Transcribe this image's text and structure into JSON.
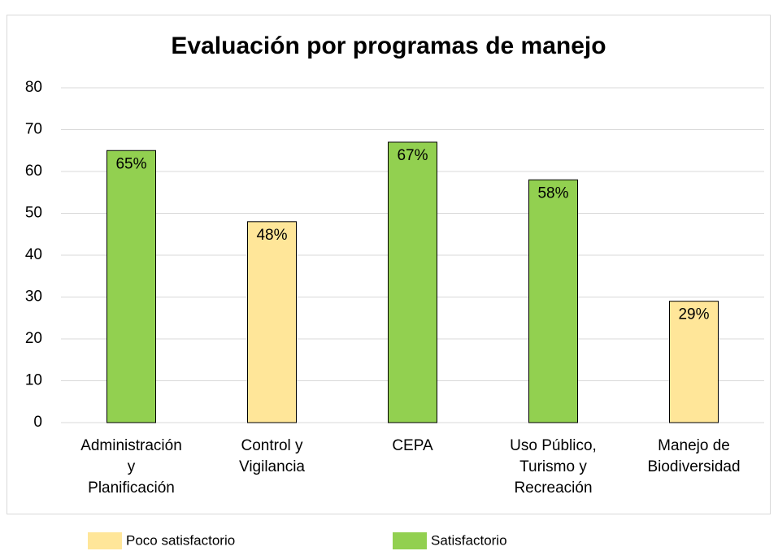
{
  "chart_data": {
    "type": "bar",
    "title": "Evaluación por programas de manejo",
    "categories": [
      "Administración\ny\nPlanificación",
      "Control y\nVigilancia",
      "CEPA",
      "Uso Público,\nTurismo y\nRecreación",
      "Manejo de\nBiodiversidad"
    ],
    "series": [
      {
        "name": "Poco satisfactorio",
        "color": "#ffe699",
        "values": [
          null,
          48,
          null,
          null,
          29
        ],
        "value_labels": [
          null,
          "48%",
          null,
          null,
          "29%"
        ]
      },
      {
        "name": "Satisfactorio",
        "color": "#92d050",
        "values": [
          65,
          null,
          67,
          58,
          null
        ],
        "value_labels": [
          "65%",
          null,
          "67%",
          "58%",
          null
        ]
      }
    ],
    "ylim": [
      0,
      80
    ],
    "yticks": [
      0,
      10,
      20,
      30,
      40,
      50,
      60,
      70,
      80
    ],
    "grid": true,
    "legend": "bottom"
  }
}
